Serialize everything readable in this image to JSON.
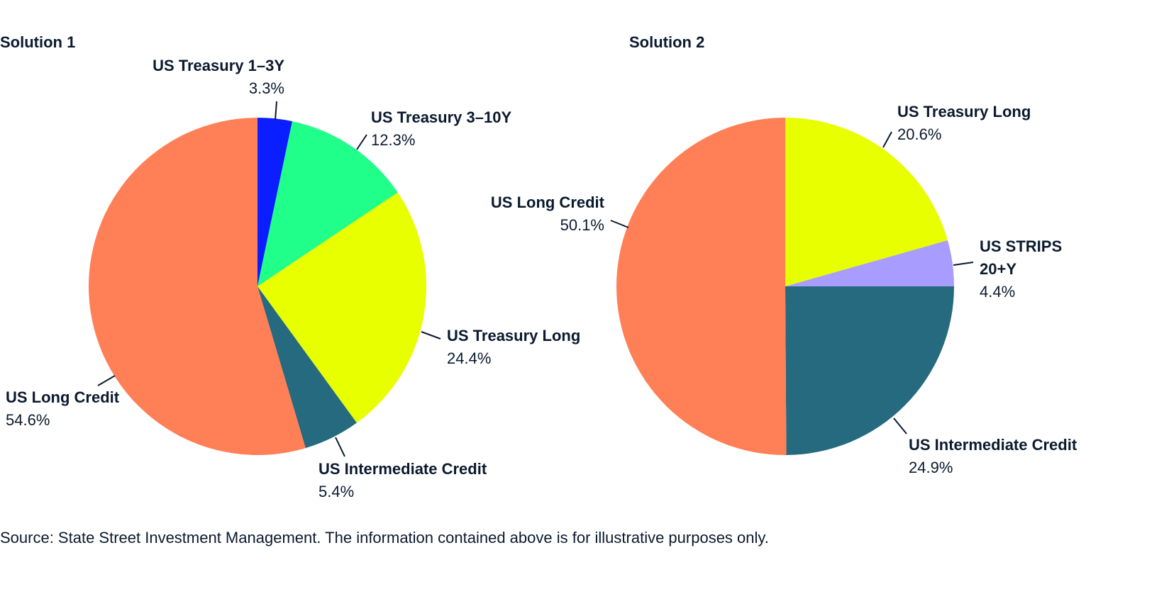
{
  "chart_data": [
    {
      "type": "pie",
      "title": "Solution 1",
      "start": "top",
      "direction": "clockwise",
      "slices": [
        {
          "label": "US Treasury 1–3Y",
          "value": 3.3,
          "value_label": "3.3%",
          "color": "#0a1eff"
        },
        {
          "label": "US Treasury 3–10Y",
          "value": 12.3,
          "value_label": "12.3%",
          "color": "#1fff8a"
        },
        {
          "label": "US Treasury Long",
          "value": 24.4,
          "value_label": "24.4%",
          "color": "#e8ff00"
        },
        {
          "label": "US Intermediate Credit",
          "value": 5.4,
          "value_label": "5.4%",
          "color": "#256a7e"
        },
        {
          "label": "US Long Credit",
          "value": 54.6,
          "value_label": "54.6%",
          "color": "#ff7f57"
        }
      ]
    },
    {
      "type": "pie",
      "title": "Solution 2",
      "start": "top",
      "direction": "clockwise",
      "slices": [
        {
          "label": "US Treasury Long",
          "value": 20.6,
          "value_label": "20.6%",
          "color": "#e8ff00"
        },
        {
          "label": "US STRIPS 20+Y",
          "value": 4.4,
          "value_label": "4.4%",
          "color": "#a89cff"
        },
        {
          "label": "US Intermediate Credit",
          "value": 24.9,
          "value_label": "24.9%",
          "color": "#256a7e"
        },
        {
          "label": "US Long Credit",
          "value": 50.1,
          "value_label": "50.1%",
          "color": "#ff7f57"
        }
      ]
    }
  ],
  "labels2_strips": [
    "US STRIPS",
    "20+Y"
  ],
  "source": "Source: State Street Investment Management. The information contained above is for illustrative purposes only."
}
